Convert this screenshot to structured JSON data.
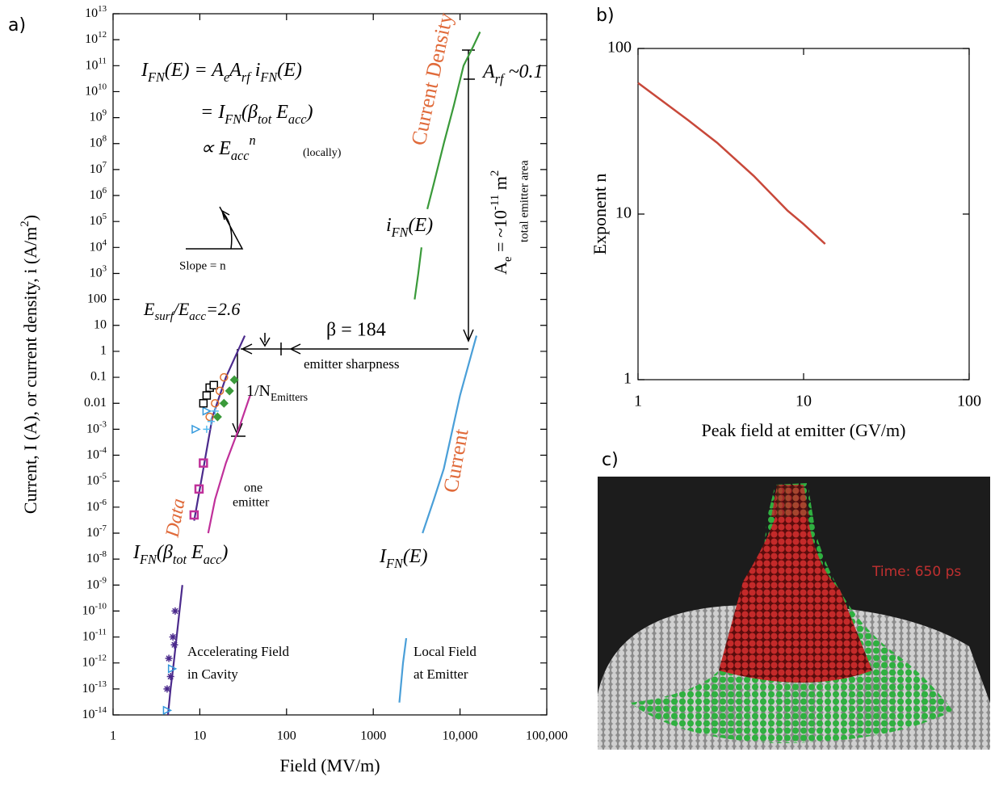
{
  "panel_labels": [
    "a)",
    "b)",
    "c)"
  ],
  "chart_data": [
    {
      "type": "line",
      "xlabel": "Field (MV/m)",
      "ylabel": "Current, I (A), or current density, i (A/m^{2})",
      "log_x": true,
      "log_y": true,
      "xlim": [
        1,
        100000
      ],
      "ylim": [
        1e-14,
        10000000000000.0
      ],
      "xticks": [
        1,
        10,
        100,
        1000,
        {
          "value": 10000,
          "label": "10,000"
        },
        {
          "value": 100000,
          "label": "100,000"
        }
      ],
      "yticks": [
        {
          "value": 10000000000000.0,
          "label": "10^{13}"
        },
        {
          "value": 1000000000000.0,
          "label": "10^{12}"
        },
        {
          "value": 100000000000.0,
          "label": "10^{11}"
        },
        {
          "value": 10000000000.0,
          "label": "10^{10}"
        },
        {
          "value": 1000000000.0,
          "label": "10^{9}"
        },
        {
          "value": 100000000.0,
          "label": "10^{8}"
        },
        {
          "value": 10000000.0,
          "label": "10^{7}"
        },
        {
          "value": 1000000.0,
          "label": "10^{6}"
        },
        {
          "value": 100000.0,
          "label": "10^{5}"
        },
        {
          "value": 10000.0,
          "label": "10^{4}"
        },
        {
          "value": 1000.0,
          "label": "10^{3}"
        },
        100,
        10,
        1,
        0.1,
        0.01,
        {
          "value": 0.001,
          "label": "10^{-3}"
        },
        {
          "value": 0.0001,
          "label": "10^{-4}"
        },
        {
          "value": 1e-05,
          "label": "10^{-5}"
        },
        {
          "value": 1e-06,
          "label": "10^{-6}"
        },
        {
          "value": 1e-07,
          "label": "10^{-7}"
        },
        {
          "value": 1e-08,
          "label": "10^{-8}"
        },
        {
          "value": 1e-09,
          "label": "10^{-9}"
        },
        {
          "value": 1e-10,
          "label": "10^{-10}"
        },
        {
          "value": 1e-11,
          "label": "10^{-11}"
        },
        {
          "value": 1e-12,
          "label": "10^{-12}"
        },
        {
          "value": 1e-13,
          "label": "10^{-13}"
        },
        {
          "value": 1e-14,
          "label": "10^{-14}"
        }
      ],
      "series": [
        {
          "color": "#3a9a3a",
          "x": [
            3000,
            3300,
            3600,
            null,
            4200,
            5000,
            6500,
            8500,
            11000,
            14000,
            17000
          ],
          "values": [
            100,
            1000,
            10000,
            null,
            300000,
            3000000,
            100000000,
            3000000000,
            100000000000,
            500000000000,
            2000000000000
          ]
        },
        {
          "color": "#4a9fd8",
          "x": [
            2000,
            2200,
            2400,
            null,
            3700,
            5000,
            6500,
            10000,
            15500
          ],
          "values": [
            3e-14,
            1e-12,
            9e-12,
            null,
            1e-07,
            2e-06,
            3e-05,
            0.02,
            4
          ]
        },
        {
          "color": "#4b2a8c",
          "x": [
            4.3,
            4.6,
            5,
            5.6,
            6.3,
            null,
            8.6,
            11,
            14,
            20,
            33
          ],
          "values": [
            1e-14,
            1e-13,
            1e-12,
            3e-11,
            1e-09,
            null,
            3e-07,
            3e-05,
            0.003,
            0.1,
            4
          ]
        },
        {
          "color": "#c0309a",
          "x": [
            12.5,
            15,
            20,
            28,
            38
          ],
          "values": [
            1e-07,
            2e-06,
            5e-05,
            0.001,
            0.02
          ]
        },
        {
          "color": "#4b2a8c",
          "marker": "asterisk",
          "x": [
            5.2,
            4.9,
            4.4,
            5.1,
            4.2,
            4.6
          ],
          "values": [
            1e-10,
            1e-11,
            1.5e-12,
            5e-12,
            1e-13,
            3e-13
          ]
        },
        {
          "color": "#3399dd",
          "marker": "triangle",
          "x": [
            4.8,
            4.2,
            9,
            12
          ],
          "values": [
            6e-13,
            1.5e-14,
            0.001,
            0.005
          ]
        },
        {
          "color": "#c0309a",
          "marker": "square",
          "x": [
            8.6,
            9.8,
            11
          ],
          "values": [
            5e-07,
            5e-06,
            5e-05
          ]
        },
        {
          "color": "#000000",
          "marker": "open-square",
          "x": [
            11,
            12,
            13,
            14.5
          ],
          "values": [
            0.01,
            0.02,
            0.04,
            0.05
          ]
        },
        {
          "color": "#e07030",
          "marker": "circle",
          "x": [
            13,
            15,
            17,
            19
          ],
          "values": [
            0.003,
            0.01,
            0.03,
            0.1
          ]
        },
        {
          "color": "#3a9a3a",
          "marker": "diamond",
          "x": [
            16,
            19,
            22,
            25
          ],
          "values": [
            0.003,
            0.01,
            0.03,
            0.08
          ]
        },
        {
          "color": "#55bbee",
          "marker": "cross",
          "x": [
            12,
            13.5,
            15
          ],
          "values": [
            0.001,
            0.002,
            0.005
          ]
        }
      ],
      "annotations": [
        "I_{FN}(E) = A_{e}A_{rf} i_{FN}(E)",
        "= I_{FN}(β_{tot} E_{acc})",
        "∝ E_{acc}^{n}",
        "(locally)",
        "Slope = n",
        "E_{surf}/E_{acc}=2.6",
        "β = 184",
        "emitter sharpness",
        "1/N_{Emitters}",
        "one",
        "emitter",
        "Data",
        "Current Density",
        "i_{FN}(E)",
        "A_{rf} ~0.1",
        "A_{e} = ~10^{-11} m^{2}",
        "total emitter area",
        "Current",
        "I_{FN}(β_{tot} E_{acc})",
        "I_{FN}(E)",
        "Accelerating Field",
        "in Cavity",
        "Local Field",
        "at Emitter"
      ]
    },
    {
      "type": "line",
      "xlabel": "Peak field  at emitter (GV/m)",
      "ylabel": "Exponent  n",
      "log_x": true,
      "log_y": true,
      "xlim": [
        1,
        100
      ],
      "ylim": [
        1,
        100
      ],
      "xticks": [
        1,
        10,
        100
      ],
      "yticks": [
        1,
        10,
        100
      ],
      "series": [
        {
          "color": "#c8483a",
          "x": [
            1,
            2,
            3,
            5,
            8,
            10,
            13.5
          ],
          "values": [
            62,
            37,
            27,
            17,
            10.5,
            8.7,
            6.6
          ]
        }
      ]
    }
  ],
  "image": {
    "overlay_text": "Time: 650 ps"
  }
}
